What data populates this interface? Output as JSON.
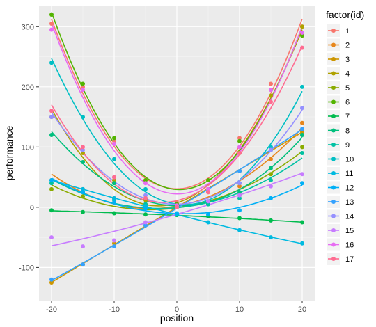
{
  "chart_data": {
    "type": "scatter",
    "title": "",
    "xlabel": "position",
    "ylabel": "performance",
    "xlim": [
      -22,
      22
    ],
    "ylim": [
      -155,
      335
    ],
    "x_ticks": [
      -20,
      -10,
      0,
      10,
      20
    ],
    "x_tick_labels": [
      "-20",
      "-10",
      "0",
      "10",
      "20"
    ],
    "y_ticks": [
      -100,
      0,
      100,
      200,
      300
    ],
    "y_tick_labels": [
      "-100",
      "0",
      "100",
      "200",
      "300"
    ],
    "grid": true,
    "legend_position": "right",
    "legend_title": "factor(id)",
    "fit": "quadratic smooth",
    "x": [
      -20,
      -15,
      -10,
      -5,
      0,
      5,
      10,
      15,
      20
    ],
    "series": [
      {
        "name": "1",
        "color": "#F8766D",
        "values": [
          305,
          200,
          110,
          45,
          8,
          45,
          115,
          205,
          300
        ]
      },
      {
        "name": "2",
        "color": "#E7861B",
        "values": [
          45,
          30,
          15,
          5,
          0,
          10,
          35,
          80,
          140
        ]
      },
      {
        "name": "3",
        "color": "#CD9600",
        "values": [
          -125,
          -95,
          -60,
          -30,
          0,
          30,
          60,
          95,
          125
        ]
      },
      {
        "name": "4",
        "color": "#AFA100",
        "values": [
          150,
          90,
          45,
          12,
          0,
          25,
          90,
          185,
          300
        ]
      },
      {
        "name": "5",
        "color": "#8AAB00",
        "values": [
          30,
          18,
          8,
          2,
          0,
          5,
          20,
          55,
          100
        ]
      },
      {
        "name": "6",
        "color": "#53B400",
        "values": [
          320,
          205,
          115,
          45,
          5,
          45,
          110,
          195,
          285
        ]
      },
      {
        "name": "7",
        "color": "#00BB4E",
        "values": [
          -5,
          -8,
          -10,
          -12,
          -13,
          -15,
          -18,
          -22,
          -25
        ]
      },
      {
        "name": "8",
        "color": "#00BF7D",
        "values": [
          120,
          75,
          40,
          15,
          0,
          5,
          25,
          65,
          120
        ]
      },
      {
        "name": "9",
        "color": "#00C1A3",
        "values": [
          40,
          25,
          12,
          5,
          0,
          5,
          15,
          45,
          90
        ]
      },
      {
        "name": "10",
        "color": "#00BFC4",
        "values": [
          240,
          150,
          80,
          30,
          2,
          10,
          40,
          100,
          200
        ]
      },
      {
        "name": "11",
        "color": "#00BAE0",
        "values": [
          45,
          30,
          15,
          2,
          -12,
          -25,
          -38,
          -50,
          -60
        ]
      },
      {
        "name": "12",
        "color": "#00B0F6",
        "values": [
          45,
          25,
          8,
          -2,
          -10,
          -12,
          -5,
          15,
          40
        ]
      },
      {
        "name": "13",
        "color": "#35A2FF",
        "values": [
          -120,
          -95,
          -65,
          -30,
          0,
          30,
          60,
          95,
          130
        ]
      },
      {
        "name": "14",
        "color": "#9590FF",
        "values": [
          150,
          95,
          50,
          20,
          0,
          10,
          40,
          95,
          165
        ]
      },
      {
        "name": "15",
        "color": "#C77CFF",
        "values": [
          -50,
          -65,
          -55,
          -25,
          0,
          10,
          20,
          35,
          55
        ]
      },
      {
        "name": "16",
        "color": "#E76BF3",
        "values": [
          295,
          195,
          105,
          40,
          3,
          30,
          100,
          195,
          290
        ]
      },
      {
        "name": "17",
        "color": "#FF6C91",
        "values": [
          160,
          100,
          50,
          15,
          0,
          25,
          90,
          175,
          265
        ]
      }
    ]
  }
}
